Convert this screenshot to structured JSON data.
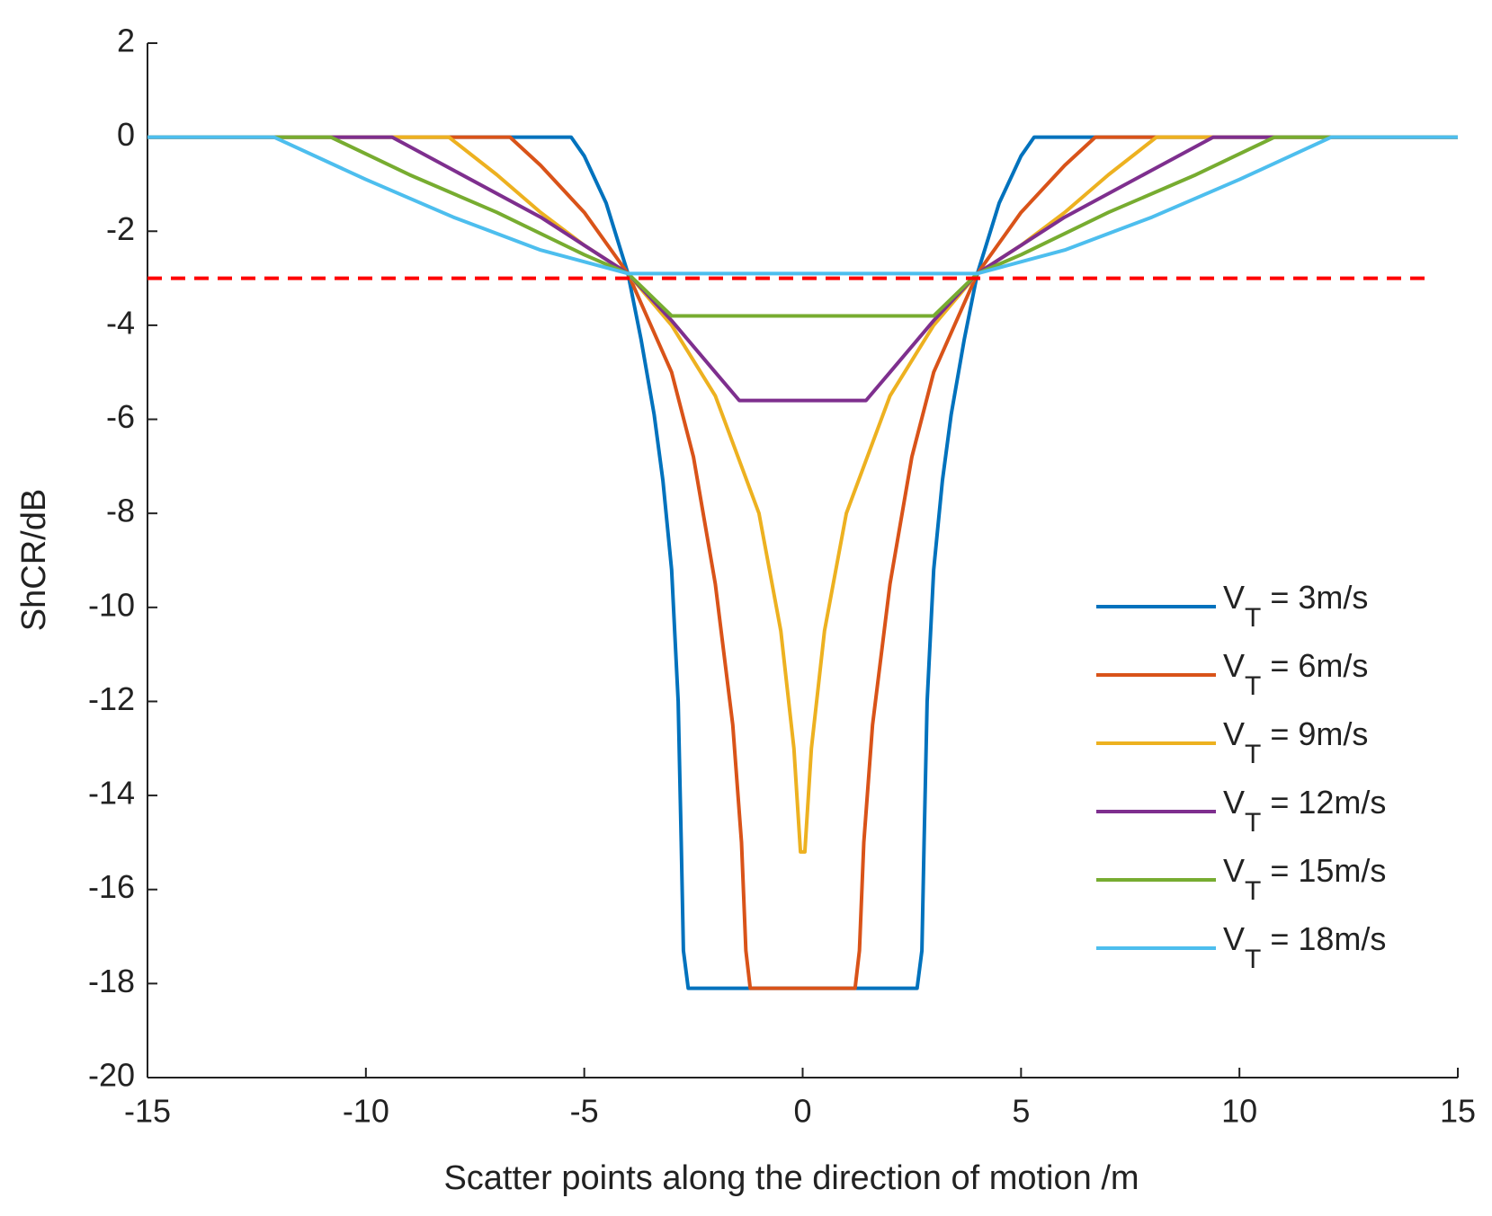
{
  "chart_data": {
    "type": "line",
    "x_label": "Scatter points along the direction of motion /m",
    "y_label": "ShCR/dB",
    "xlim": [
      -15,
      15
    ],
    "ylim": [
      -20,
      2
    ],
    "xticks": [
      -15,
      -10,
      -5,
      0,
      5,
      10,
      15
    ],
    "yticks": [
      -20,
      -18,
      -16,
      -14,
      -12,
      -10,
      -8,
      -6,
      -4,
      -2,
      0,
      2
    ],
    "legend": "lower right",
    "series": [
      {
        "name": "VT = 3m/s",
        "color": "#0072BD",
        "x": [
          -15,
          -5.3,
          -5,
          -4.5,
          -4,
          -3.7,
          -3.4,
          -3.2,
          -3,
          -2.85,
          -2.78,
          -2.73,
          -2.62,
          2.62,
          2.73,
          2.78,
          2.85,
          3,
          3.2,
          3.4,
          3.7,
          4,
          4.5,
          5,
          5.3,
          15
        ],
        "values": [
          0,
          0,
          -0.4,
          -1.4,
          -2.9,
          -4.3,
          -5.9,
          -7.3,
          -9.2,
          -12,
          -15,
          -17.3,
          -18.1,
          -18.1,
          -17.3,
          -15,
          -12,
          -9.2,
          -7.3,
          -5.9,
          -4.3,
          -2.9,
          -1.4,
          -0.4,
          0,
          0
        ]
      },
      {
        "name": "VT = 6m/s",
        "color": "#D95319",
        "x": [
          -15,
          -6.7,
          -6,
          -5,
          -4,
          -3,
          -2.5,
          -2,
          -1.6,
          -1.4,
          -1.3,
          -1.2,
          1.2,
          1.3,
          1.4,
          1.6,
          2,
          2.5,
          3,
          4,
          5,
          6,
          6.7,
          15
        ],
        "values": [
          0,
          0,
          -0.6,
          -1.6,
          -2.9,
          -5,
          -6.8,
          -9.5,
          -12.5,
          -15,
          -17.3,
          -18.1,
          -18.1,
          -17.3,
          -15,
          -12.5,
          -9.5,
          -6.8,
          -5,
          -2.9,
          -1.6,
          -0.6,
          0,
          0
        ]
      },
      {
        "name": "VT = 9m/s",
        "color": "#EDB120",
        "x": [
          -15,
          -8.1,
          -7,
          -6,
          -5,
          -4,
          -3,
          -2,
          -1,
          -0.5,
          -0.2,
          -0.05,
          0.05,
          0.2,
          0.5,
          1,
          2,
          3,
          4,
          5,
          6,
          7,
          8.1,
          15
        ],
        "values": [
          0,
          0,
          -0.8,
          -1.6,
          -2.3,
          -2.9,
          -4,
          -5.5,
          -8,
          -10.5,
          -13,
          -15.2,
          -15.2,
          -13,
          -10.5,
          -8,
          -5.5,
          -4,
          -2.9,
          -2.3,
          -1.6,
          -0.8,
          0,
          0
        ]
      },
      {
        "name": "VT = 12m/s",
        "color": "#7E2F8E",
        "x": [
          -15,
          -9.4,
          -8,
          -6,
          -4,
          -3,
          -2,
          -1.45,
          1.45,
          2,
          3,
          4,
          6,
          8,
          9.4,
          15
        ],
        "values": [
          0,
          0,
          -0.7,
          -1.7,
          -2.9,
          -3.9,
          -5,
          -5.6,
          -5.6,
          -5,
          -3.9,
          -2.9,
          -1.7,
          -0.7,
          0,
          0
        ]
      },
      {
        "name": "VT = 15m/s",
        "color": "#77AC30",
        "x": [
          -15,
          -10.8,
          -9,
          -7,
          -5,
          -4,
          -3,
          3,
          4,
          5,
          7,
          9,
          10.8,
          15
        ],
        "values": [
          0,
          0,
          -0.8,
          -1.6,
          -2.5,
          -2.9,
          -3.8,
          -3.8,
          -2.9,
          -2.5,
          -1.6,
          -0.8,
          0,
          0
        ]
      },
      {
        "name": "VT = 18m/s",
        "color": "#4DBEEE",
        "x": [
          -15,
          -12.1,
          -10,
          -8,
          -6,
          -4,
          4,
          6,
          8,
          10,
          12.1,
          15
        ],
        "values": [
          0,
          0,
          -0.9,
          -1.7,
          -2.4,
          -2.9,
          -2.9,
          -2.4,
          -1.7,
          -0.9,
          0,
          0
        ]
      }
    ],
    "reference_line": {
      "y": -3,
      "x": [
        -15,
        14.4
      ],
      "color": "#FF0000",
      "dashed": true
    }
  }
}
